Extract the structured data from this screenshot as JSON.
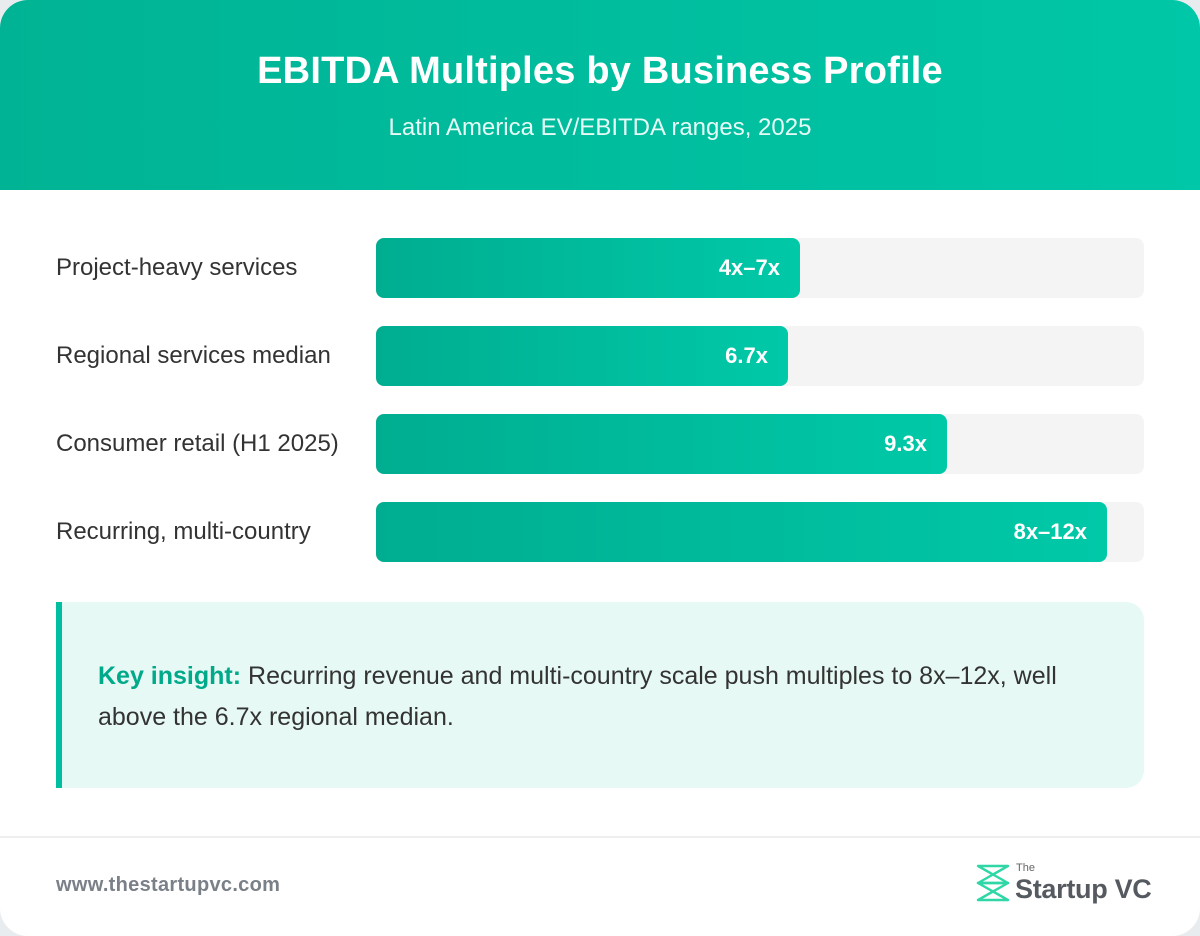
{
  "header": {
    "title": "EBITDA Multiples by Business Profile",
    "subtitle": "Latin America EV/EBITDA ranges, 2025"
  },
  "chart_data": {
    "type": "bar",
    "orientation": "horizontal",
    "title": "EBITDA Multiples by Business Profile",
    "subtitle": "Latin America EV/EBITDA ranges, 2025",
    "xlabel": "",
    "ylabel": "",
    "xlim": [
      0,
      12.5
    ],
    "grid": false,
    "legend": "none",
    "categories": [
      "Project-heavy services",
      "Regional services median",
      "Consumer retail (H1 2025)",
      "Recurring, multi-country"
    ],
    "values": [
      6.9,
      6.7,
      9.3,
      11.9
    ],
    "value_labels": [
      "4x–7x",
      "6.7x",
      "9.3x",
      "8x–12x"
    ],
    "ranges": [
      [
        4,
        7
      ],
      null,
      null,
      [
        8,
        12
      ]
    ],
    "colors": {
      "bar": "#00bfa0",
      "track": "#f4f4f4"
    }
  },
  "insight": {
    "key": "Key insight:",
    "text": " Recurring revenue and multi-country scale push multiples to 8x–12x, well above the 6.7x regional median."
  },
  "footer": {
    "url": "www.thestartupvc.com",
    "logo_small": "The",
    "logo_name": "Startup VC"
  },
  "colors": {
    "accent": "#00bfa0",
    "header_start": "#00b394",
    "header_end": "#00c7a7",
    "insight_bg": "#e6f9f4"
  }
}
